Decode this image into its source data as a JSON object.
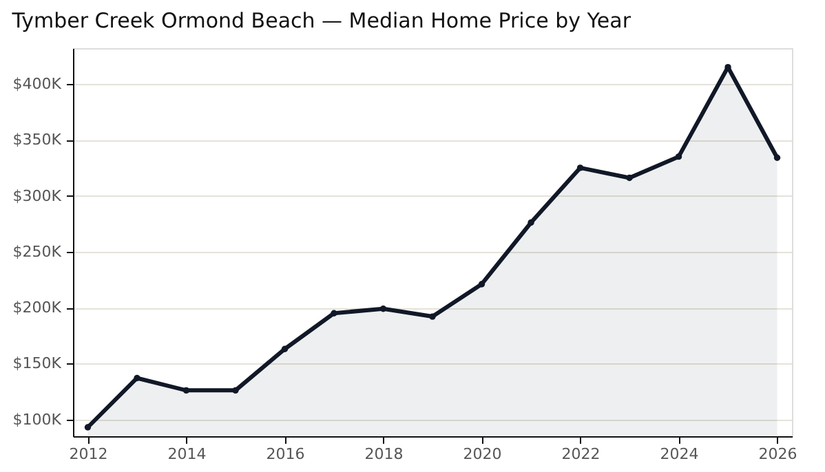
{
  "chart_data": {
    "type": "area",
    "title": "Tymber Creek Ormond Beach — Median Home Price by Year",
    "x": [
      2012,
      2013,
      2014,
      2015,
      2016,
      2017,
      2018,
      2019,
      2020,
      2021,
      2022,
      2023,
      2024,
      2025,
      2026
    ],
    "series": [
      {
        "color": "#111827",
        "values": [
          93000,
          137000,
          126000,
          126000,
          163000,
          195000,
          199000,
          192000,
          221000,
          276000,
          325000,
          316000,
          335000,
          415000,
          334000
        ]
      }
    ],
    "xlim": [
      2011.7,
      2026.3
    ],
    "xticks": [
      2012,
      2014,
      2016,
      2018,
      2020,
      2022,
      2024,
      2026
    ],
    "ylim": [
      85000,
      432000
    ],
    "yticks": [
      {
        "value": 100000,
        "label": "$100K"
      },
      {
        "value": 150000,
        "label": "$150K"
      },
      {
        "value": 200000,
        "label": "$200K"
      },
      {
        "value": 250000,
        "label": "$250K"
      },
      {
        "value": 300000,
        "label": "$300K"
      },
      {
        "value": 350000,
        "label": "$350K"
      },
      {
        "value": 400000,
        "label": "$400K"
      }
    ],
    "grid": "y",
    "marker": "circle",
    "line_style": "solid"
  }
}
